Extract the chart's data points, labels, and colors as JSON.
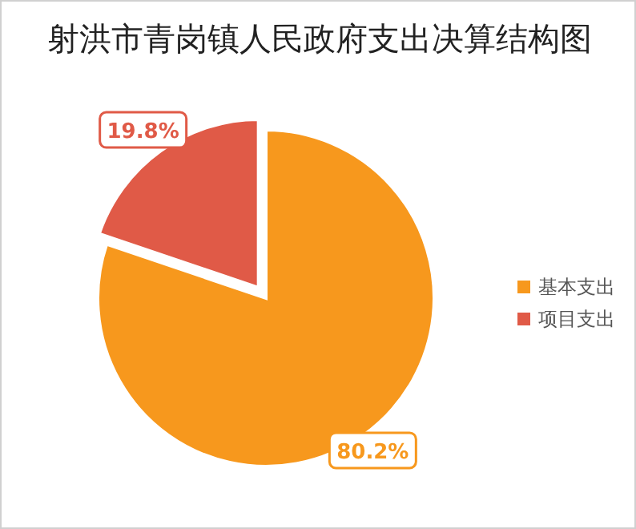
{
  "chart_data": {
    "type": "pie",
    "title": "射洪市青岗镇人民政府支出决算结构图",
    "categories": [
      "基本支出",
      "项目支出"
    ],
    "values": [
      80.2,
      19.8
    ],
    "colors": [
      "#f7981d",
      "#e05a47"
    ],
    "value_labels": [
      "80.2%",
      "19.8%"
    ],
    "legend": "right"
  }
}
